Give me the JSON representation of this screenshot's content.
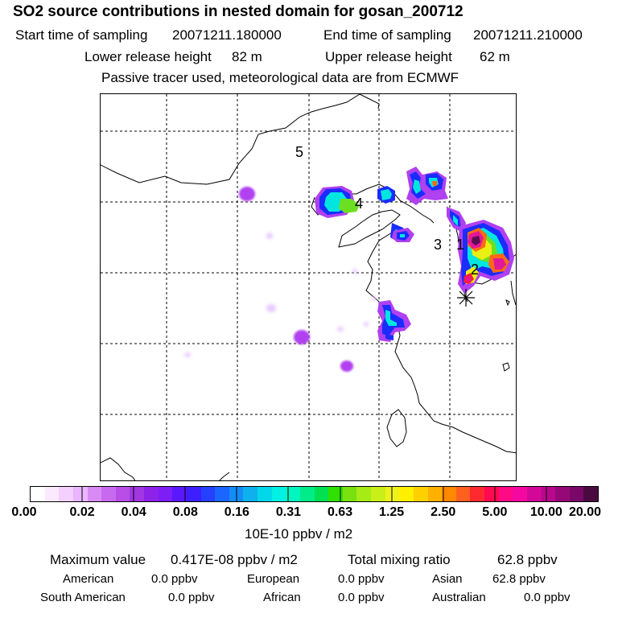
{
  "header": {
    "title": "SO2 source contributions in nested domain for gosan_200712",
    "start_label": "Start time of sampling",
    "start_value": "20071211.180000",
    "end_label": "End time of sampling",
    "end_value": "20071211.210000",
    "lower_label": "Lower release height",
    "lower_value": "82 m",
    "upper_label": "Upper release height",
    "upper_value": "62 m",
    "note": "Passive tracer used, meteorological data are from ECMWF"
  },
  "map": {
    "region_labels": [
      "1",
      "2",
      "3",
      "4",
      "5"
    ],
    "receptor": "gosan-receptor",
    "plume_colors": {
      "light": "#e9c8ff",
      "violet": "#b040f0",
      "blue": "#1a2cff",
      "cyan": "#00e5e0",
      "green": "#6ddf22",
      "yellow": "#e8ef14",
      "orange": "#ff6a10",
      "red": "#ff1a3a",
      "magenta": "#e0189a",
      "dark": "#5b0f52"
    }
  },
  "colorbar": {
    "tick_labels": [
      "0.00",
      "0.02",
      "0.04",
      "0.08",
      "0.16",
      "0.31",
      "0.63",
      "1.25",
      "2.50",
      "5.00",
      "10.00",
      "20.00"
    ],
    "unit": "10E-10 ppbv / m2",
    "colors": [
      "#ffffff",
      "#fbe9ff",
      "#f3d0ff",
      "#eab6ff",
      "#d88bf4",
      "#c86af0",
      "#b84de8",
      "#a236e0",
      "#8d22e8",
      "#7c1ef5",
      "#5a18ff",
      "#3c1eff",
      "#2540ff",
      "#1a66ff",
      "#148cf6",
      "#0fb0ee",
      "#00d8ea",
      "#00f0e4",
      "#00f5c0",
      "#00ec88",
      "#00e050",
      "#2fe000",
      "#7ae010",
      "#a6ea16",
      "#c8f018",
      "#eef21a",
      "#fff000",
      "#ffd000",
      "#ffb000",
      "#ff8800",
      "#ff6020",
      "#ff2a30",
      "#ff0a50",
      "#ff0a86",
      "#f408a0",
      "#d20898",
      "#b8088c",
      "#960878",
      "#7a0868",
      "#4a0a40"
    ]
  },
  "summary": {
    "max_label": "Maximum value",
    "max_value": "0.417E-08 ppbv / m2",
    "total_label": "Total mixing ratio",
    "total_value": "62.8 ppbv",
    "regions": [
      {
        "name": "American",
        "value": "0.0 ppbv"
      },
      {
        "name": "European",
        "value": "0.0 ppbv"
      },
      {
        "name": "Asian",
        "value": "62.8 ppbv"
      },
      {
        "name": "South American",
        "value": "0.0 ppbv"
      },
      {
        "name": "African",
        "value": "0.0 ppbv"
      },
      {
        "name": "Australian",
        "value": "0.0 ppbv"
      }
    ]
  }
}
